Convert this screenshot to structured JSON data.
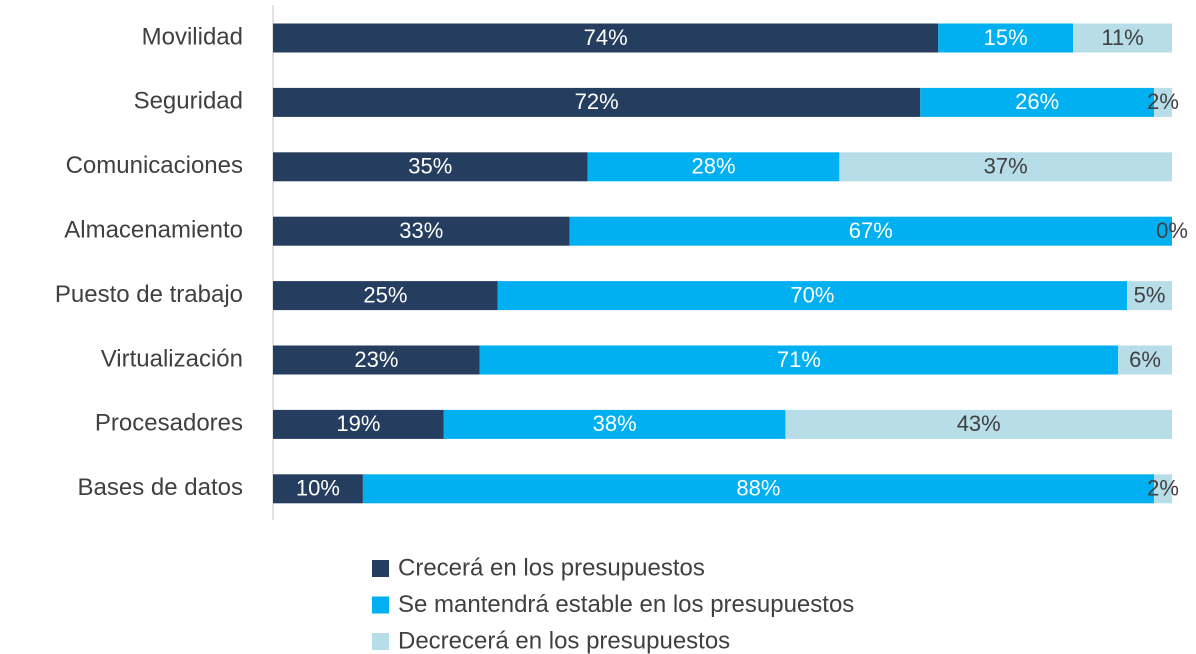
{
  "chart_data": {
    "type": "stacked_barh",
    "categories": [
      "Movilidad",
      "Seguridad",
      "Comunicaciones",
      "Almacenamiento",
      "Puesto de trabajo",
      "Virtualización",
      "Procesadores",
      "Bases de datos"
    ],
    "xlim": [
      0,
      100
    ],
    "series": [
      {
        "name": "Crecerá en los presupuestos",
        "color": "#253d5e",
        "values": [
          74,
          72,
          35,
          33,
          25,
          23,
          19,
          10
        ],
        "value_labels": [
          "74%",
          "72%",
          "35%",
          "33%",
          "25%",
          "23%",
          "19%",
          "10%"
        ]
      },
      {
        "name": "Se mantendrá estable en los presupuestos",
        "color": "#00b0f0",
        "values": [
          15,
          26,
          28,
          67,
          70,
          71,
          38,
          88
        ],
        "value_labels": [
          "15%",
          "26%",
          "28%",
          "67%",
          "70%",
          "71%",
          "38%",
          "88%"
        ]
      },
      {
        "name": "Decrecerá en los presupuestos",
        "color": "#b7dde8",
        "values": [
          11,
          2,
          37,
          0,
          5,
          6,
          43,
          2
        ],
        "value_labels": [
          "11%",
          "2%",
          "37%",
          "0%",
          "5%",
          "6%",
          "43%",
          "2%"
        ]
      }
    ]
  }
}
